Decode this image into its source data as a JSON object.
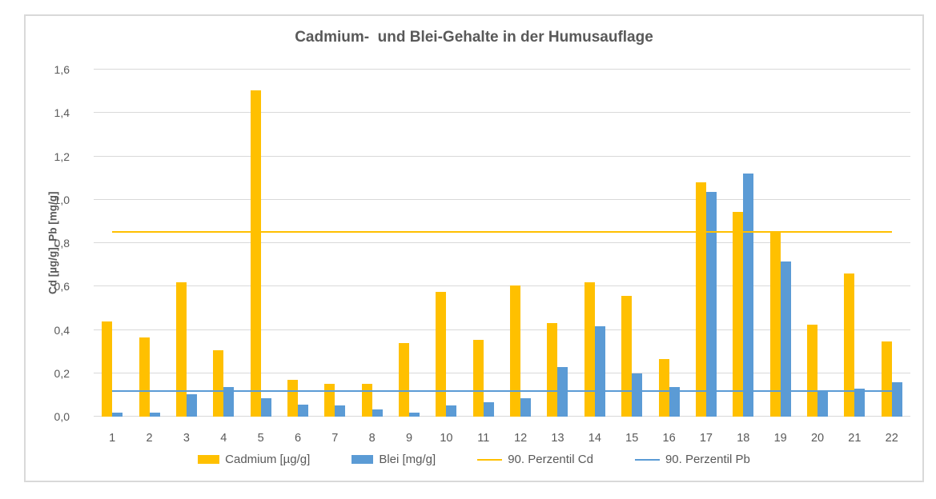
{
  "chart_data": {
    "type": "bar",
    "title": "Cadmium-  und Blei-Gehalte in der Humusauflage",
    "ylabel": "Cd [µg/g], Pb [mg/g]",
    "xlabel": "",
    "categories": [
      "1",
      "2",
      "3",
      "4",
      "5",
      "6",
      "7",
      "8",
      "9",
      "10",
      "11",
      "12",
      "13",
      "14",
      "15",
      "16",
      "17",
      "18",
      "19",
      "20",
      "21",
      "22"
    ],
    "series": [
      {
        "name": "Cadmium [µg/g]",
        "color": "#FFC000",
        "values": [
          0.44,
          0.365,
          0.62,
          0.305,
          1.505,
          0.17,
          0.15,
          0.15,
          0.34,
          0.575,
          0.355,
          0.605,
          0.43,
          0.62,
          0.555,
          0.265,
          1.08,
          0.945,
          0.855,
          0.425,
          0.66,
          0.345
        ]
      },
      {
        "name": "Blei [mg/g]",
        "color": "#5B9BD5",
        "values": [
          0.02,
          0.02,
          0.105,
          0.135,
          0.085,
          0.055,
          0.05,
          0.035,
          0.02,
          0.05,
          0.065,
          0.085,
          0.23,
          0.415,
          0.2,
          0.135,
          1.035,
          1.12,
          0.715,
          0.12,
          0.13,
          0.16
        ]
      }
    ],
    "reference_lines": [
      {
        "name": "90. Perzentil Cd",
        "color": "#FFC000",
        "value": 0.85
      },
      {
        "name": "90. Perzentil Pb",
        "color": "#5B9BD5",
        "value": 0.118
      }
    ],
    "ylim": [
      0,
      1.6
    ],
    "ytick_step": 0.2,
    "ytick_labels": [
      "0,0",
      "0,2",
      "0,4",
      "0,6",
      "0,8",
      "1,0",
      "1,2",
      "1,4",
      "1,6"
    ],
    "grid": true,
    "legend_position": "bottom",
    "colors": {
      "text": "#595959",
      "gridline": "#D9D9D9",
      "frame_border": "#D9D9D9",
      "background": "#FFFFFF"
    }
  }
}
